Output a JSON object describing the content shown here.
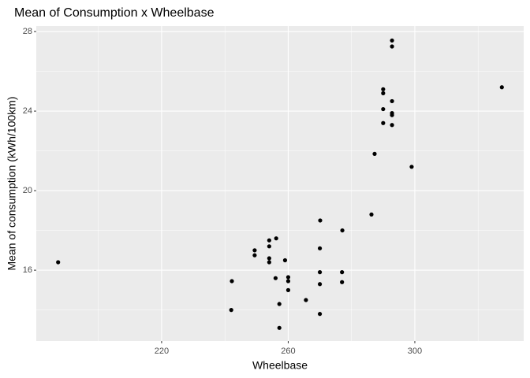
{
  "chart_data": {
    "type": "scatter",
    "title": "Mean of Consumption x Wheelbase",
    "x_label": "Wheelbase",
    "y_label": "Mean of consumption (kWh/100km)",
    "color": "#000000",
    "grid": true,
    "background": "#ebebeb",
    "xlim": [
      180.4,
      334.4
    ],
    "ylim": [
      12.44,
      28.28
    ],
    "xticks": [
      220,
      260,
      300
    ],
    "yticks": [
      16,
      20,
      24,
      28
    ],
    "x_minor_ticks": [
      200,
      240,
      280,
      320
    ],
    "y_minor_ticks": [
      14,
      18,
      22,
      26
    ],
    "x": [
      187.3,
      242,
      242.2,
      249.4,
      249.4,
      254,
      254,
      254,
      254,
      256.2,
      256,
      257.2,
      257.2,
      259,
      260,
      260,
      260,
      265.6,
      270.1,
      270,
      270,
      270,
      270,
      277.1,
      277,
      277,
      286.3,
      287.3,
      290,
      290,
      290,
      290,
      292.8,
      292.8,
      292.8,
      292.8,
      292.8,
      292.8,
      299,
      327.5
    ],
    "values": [
      16.4,
      14.0,
      15.45,
      17.0,
      16.75,
      17.5,
      17.2,
      16.6,
      16.4,
      17.6,
      15.6,
      14.3,
      13.1,
      16.5,
      15.65,
      15.45,
      15.0,
      14.5,
      18.5,
      17.1,
      15.9,
      15.3,
      13.8,
      18.0,
      15.9,
      15.4,
      18.8,
      21.85,
      25.1,
      24.9,
      24.1,
      23.4,
      27.55,
      27.25,
      24.5,
      23.9,
      23.8,
      23.3,
      21.2,
      25.2
    ]
  }
}
